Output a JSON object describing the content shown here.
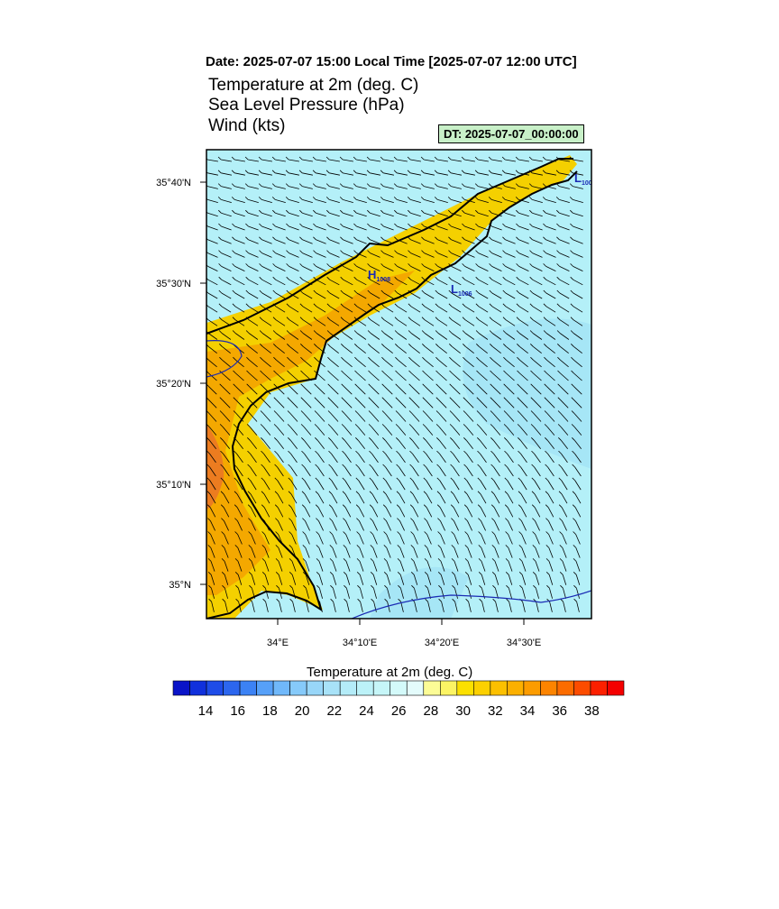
{
  "header": {
    "date_line": "Date: 2025-07-07  15:00 Local Time [2025-07-07  12:00 UTC]",
    "field_titles": [
      "Temperature at 2m   (deg. C)",
      "Sea Level Pressure   (hPa)",
      "Wind   (kts)"
    ],
    "dt_badge": "DT: 2025-07-07_00:00:00"
  },
  "map": {
    "lat_labels": [
      "35°40'N",
      "35°30'N",
      "35°20'N",
      "35°10'N",
      "35°N"
    ],
    "lon_labels": [
      "34°E",
      "34°10'E",
      "34°20'E",
      "34°30'E"
    ],
    "pressure_markers": [
      {
        "symbol": "H",
        "value": "1008"
      },
      {
        "symbol": "L",
        "value": "1006"
      },
      {
        "symbol": "L",
        "value": "100"
      }
    ],
    "colors": {
      "sea": "#b4f0f8",
      "sea_cool": "#a4e4f4",
      "land_warm": "#f4d000",
      "land_hot": "#f4a000",
      "land_hottest": "#ec7c20",
      "coast": "#000000",
      "isobar": "#1a2ab4"
    }
  },
  "colorbar": {
    "title": "Temperature at 2m  (deg. C)",
    "tick_labels": [
      "14",
      "16",
      "18",
      "20",
      "22",
      "24",
      "26",
      "28",
      "30",
      "32",
      "34",
      "36",
      "38"
    ],
    "colors": [
      "#0a14c8",
      "#1030dc",
      "#1e4ce8",
      "#2c66ee",
      "#3c82f4",
      "#56a0f8",
      "#70b8fa",
      "#86cafa",
      "#98d6f8",
      "#a8e2f8",
      "#b4ecf8",
      "#bcf2f8",
      "#c6f6f8",
      "#d4fafa",
      "#e4fcfc",
      "#fcfc96",
      "#fcf464",
      "#fce000",
      "#fcd000",
      "#fcc000",
      "#fcb000",
      "#fc9c00",
      "#fc8400",
      "#fc6c00",
      "#fc4c00",
      "#fc2000",
      "#f40000"
    ]
  }
}
